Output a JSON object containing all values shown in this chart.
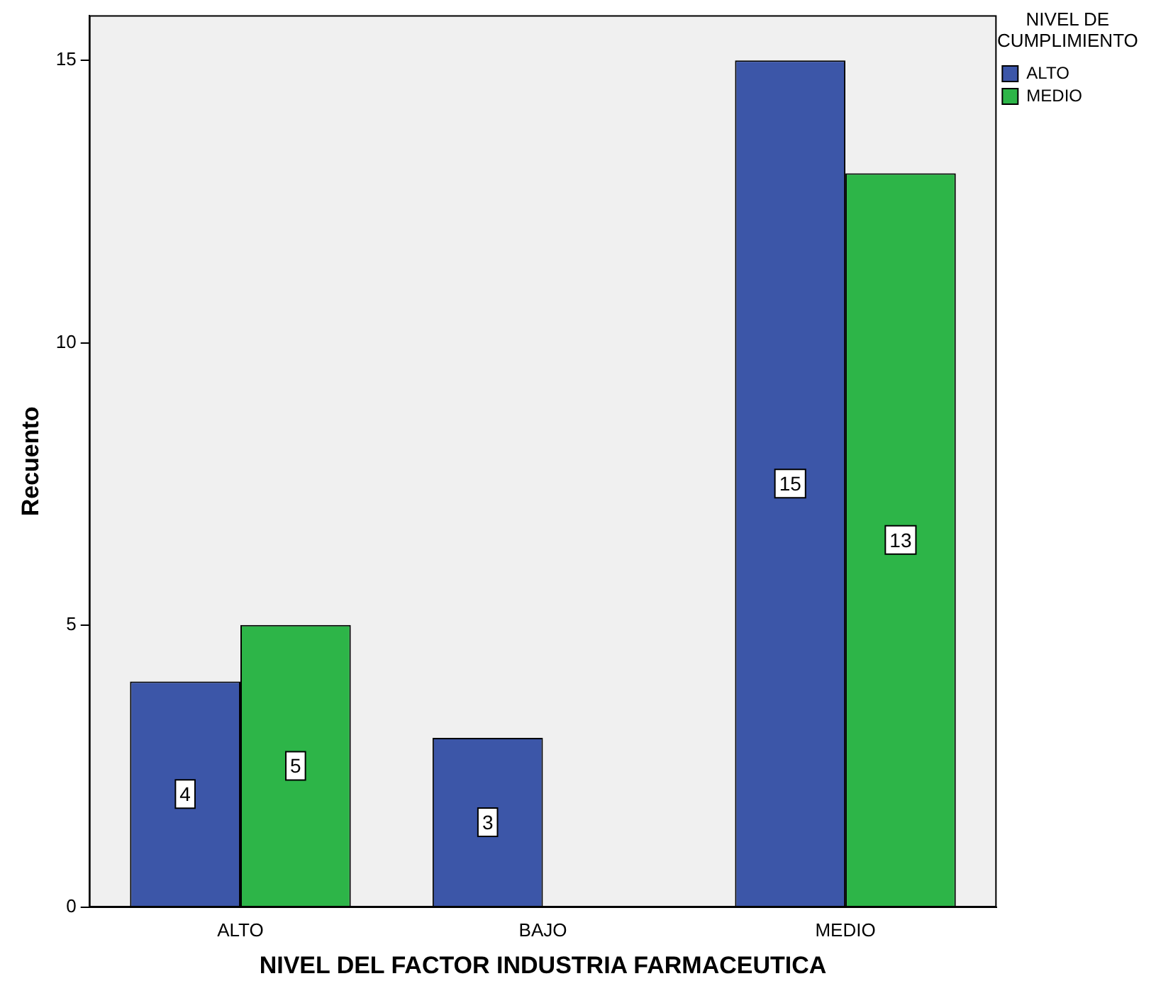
{
  "chart_data": {
    "type": "bar",
    "xlabel": "NIVEL DEL FACTOR INDUSTRIA FARMACEUTICA",
    "ylabel": "Recuento",
    "legend_title": "NIVEL DE CUMPLIMIENTO",
    "categories": [
      "ALTO",
      "BAJO",
      "MEDIO"
    ],
    "series": [
      {
        "name": "ALTO",
        "color": "#3c56a8",
        "values": [
          4,
          3,
          15
        ]
      },
      {
        "name": "MEDIO",
        "color": "#2db548",
        "values": [
          5,
          null,
          13
        ]
      }
    ],
    "ylim": [
      0,
      15.8
    ],
    "yticks": [
      0,
      5,
      10,
      15
    ],
    "grid": false,
    "legend": "top right",
    "data_labels": true
  }
}
